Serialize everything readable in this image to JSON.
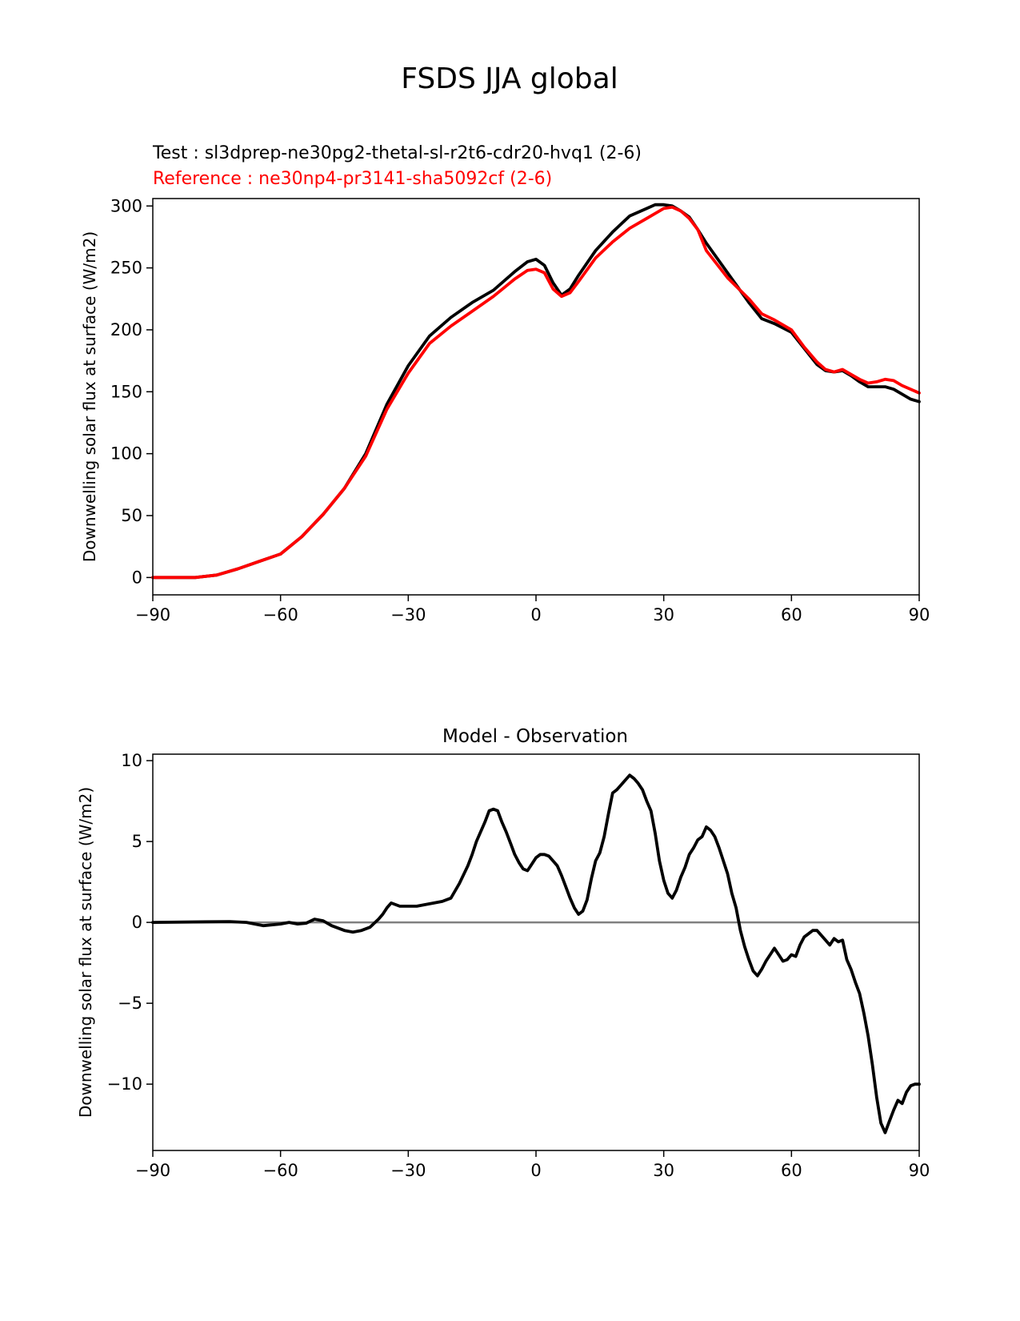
{
  "figure": {
    "title": "FSDS JJA global",
    "test_label": "Test : sl3dprep-ne30pg2-thetal-sl-r2t6-cdr20-hvq1 (2-6)",
    "reference_label": "Reference : ne30np4-pr3141-sha5092cf (2-6)"
  },
  "colors": {
    "test": "#000000",
    "reference": "#ff0000",
    "zero_line": "#808080"
  },
  "chart_data": [
    {
      "type": "line",
      "xlabel": "",
      "ylabel": "Downwelling solar flux at surface (W/m2)",
      "xlim": [
        -90,
        90
      ],
      "ylim": [
        -14,
        306
      ],
      "xticks": [
        -90,
        -60,
        -30,
        0,
        30,
        60,
        90
      ],
      "xtick_labels": [
        "−90",
        "−60",
        "−30",
        "0",
        "30",
        "60",
        "90"
      ],
      "yticks": [
        0,
        50,
        100,
        150,
        200,
        250,
        300
      ],
      "ytick_labels": [
        "0",
        "50",
        "100",
        "150",
        "200",
        "250",
        "300"
      ],
      "grid": false,
      "series": [
        {
          "name": "Test",
          "color": "#000000",
          "x": [
            -90,
            -85,
            -80,
            -75,
            -70,
            -65,
            -60,
            -55,
            -50,
            -45,
            -40,
            -35,
            -30,
            -25,
            -20,
            -15,
            -10,
            -5,
            -2,
            0,
            2,
            4,
            6,
            8,
            10,
            14,
            18,
            22,
            26,
            28,
            30,
            32,
            34,
            36,
            38,
            40,
            45,
            50,
            53,
            56,
            60,
            63,
            66,
            68,
            70,
            72,
            74,
            76,
            78,
            80,
            82,
            84,
            86,
            88,
            90
          ],
          "y": [
            0,
            0,
            0,
            2,
            7,
            13,
            19,
            33,
            51,
            72,
            100,
            140,
            171,
            195,
            210,
            222,
            232,
            247,
            255,
            257,
            252,
            238,
            228,
            233,
            244,
            264,
            279,
            292,
            298,
            301,
            301,
            300,
            296,
            291,
            281,
            270,
            246,
            222,
            209,
            205,
            198,
            185,
            172,
            167,
            166,
            167,
            163,
            158,
            154,
            154,
            154,
            152,
            148,
            144,
            142
          ]
        },
        {
          "name": "Reference",
          "color": "#ff0000",
          "x": [
            -90,
            -85,
            -80,
            -75,
            -70,
            -65,
            -60,
            -55,
            -50,
            -45,
            -40,
            -35,
            -30,
            -25,
            -20,
            -15,
            -10,
            -5,
            -2,
            0,
            2,
            4,
            6,
            8,
            10,
            14,
            18,
            22,
            26,
            28,
            30,
            32,
            34,
            36,
            38,
            40,
            45,
            50,
            53,
            56,
            60,
            63,
            66,
            68,
            70,
            72,
            74,
            76,
            78,
            80,
            82,
            84,
            86,
            88,
            90
          ],
          "y": [
            0,
            0,
            0,
            2,
            7,
            13,
            19,
            33,
            51,
            72,
            98,
            136,
            165,
            189,
            203,
            215,
            227,
            241,
            248,
            249,
            246,
            233,
            227,
            230,
            239,
            258,
            271,
            282,
            290,
            294,
            298,
            299,
            296,
            290,
            281,
            264,
            242,
            225,
            213,
            208,
            200,
            186,
            174,
            168,
            166,
            168,
            164,
            160,
            157,
            158,
            160,
            159,
            155,
            152,
            149
          ]
        }
      ]
    },
    {
      "type": "line",
      "title": "Model - Observation",
      "xlabel": "",
      "ylabel": "Downwelling solar flux at surface (W/m2)",
      "xlim": [
        -90,
        90
      ],
      "ylim": [
        -14.1,
        10.4
      ],
      "xticks": [
        -90,
        -60,
        -30,
        0,
        30,
        60,
        90
      ],
      "xtick_labels": [
        "−90",
        "−60",
        "−30",
        "0",
        "30",
        "60",
        "90"
      ],
      "yticks": [
        -10,
        -5,
        0,
        5,
        10
      ],
      "ytick_labels": [
        "−10",
        "−5",
        "0",
        "5",
        "10"
      ],
      "grid": false,
      "reference_line": 0,
      "series": [
        {
          "name": "",
          "color": "#000000",
          "x": [
            -90,
            -72,
            -68,
            -64,
            -60,
            -58,
            -56,
            -54,
            -52,
            -50,
            -48,
            -45,
            -43,
            -41,
            -39,
            -37,
            -36,
            -35,
            -34,
            -32,
            -30,
            -29,
            -28,
            -26,
            -24,
            -22,
            -20,
            -18,
            -16,
            -15,
            -14,
            -13,
            -12,
            -11,
            -10,
            -9,
            -8,
            -7,
            -6,
            -5,
            -4,
            -3,
            -2,
            -1,
            0,
            1,
            2,
            3,
            4,
            5,
            6,
            7,
            8,
            9,
            10,
            11,
            12,
            13,
            14,
            15,
            16,
            17,
            18,
            19,
            20,
            21,
            22,
            23,
            24,
            25,
            26,
            27,
            28,
            29,
            30,
            31,
            32,
            33,
            34,
            35,
            36,
            37,
            38,
            39,
            40,
            41,
            42,
            43,
            44,
            45,
            46,
            47,
            48,
            49,
            50,
            51,
            52,
            53,
            54,
            55,
            56,
            57,
            58,
            59,
            60,
            61,
            62,
            63,
            64,
            65,
            66,
            67,
            68,
            69,
            70,
            71,
            72,
            73,
            74,
            75,
            76,
            77,
            78,
            79,
            80,
            81,
            82,
            83,
            84,
            85,
            86,
            87,
            88,
            89,
            90
          ],
          "y": [
            0,
            0.05,
            0,
            -0.2,
            -0.1,
            0,
            -0.1,
            -0.05,
            0.2,
            0.1,
            -0.2,
            -0.5,
            -0.6,
            -0.5,
            -0.3,
            0.2,
            0.5,
            0.9,
            1.2,
            1.0,
            1.0,
            1.0,
            1.0,
            1.1,
            1.2,
            1.3,
            1.5,
            2.4,
            3.5,
            4.2,
            5.0,
            5.6,
            6.2,
            6.9,
            7.0,
            6.9,
            6.2,
            5.6,
            4.9,
            4.2,
            3.7,
            3.3,
            3.2,
            3.6,
            4.0,
            4.2,
            4.2,
            4.1,
            3.8,
            3.5,
            2.9,
            2.2,
            1.5,
            0.9,
            0.5,
            0.7,
            1.4,
            2.7,
            3.8,
            4.3,
            5.3,
            6.7,
            8.0,
            8.2,
            8.5,
            8.8,
            9.1,
            8.9,
            8.6,
            8.2,
            7.5,
            6.9,
            5.5,
            3.8,
            2.6,
            1.8,
            1.5,
            2.0,
            2.8,
            3.4,
            4.2,
            4.6,
            5.1,
            5.3,
            5.9,
            5.7,
            5.3,
            4.6,
            3.8,
            3.0,
            1.8,
            0.9,
            -0.5,
            -1.5,
            -2.3,
            -3.0,
            -3.3,
            -2.9,
            -2.4,
            -2.0,
            -1.6,
            -2.0,
            -2.4,
            -2.3,
            -2.0,
            -2.1,
            -1.4,
            -0.9,
            -0.7,
            -0.5,
            -0.5,
            -0.8,
            -1.1,
            -1.4,
            -1.0,
            -1.2,
            -1.1,
            -2.3,
            -2.9,
            -3.7,
            -4.4,
            -5.6,
            -7.0,
            -8.8,
            -10.8,
            -12.4,
            -13.0,
            -12.3,
            -11.6,
            -11.0,
            -11.2,
            -10.5,
            -10.1,
            -10.0,
            -10.0
          ]
        }
      ]
    }
  ]
}
